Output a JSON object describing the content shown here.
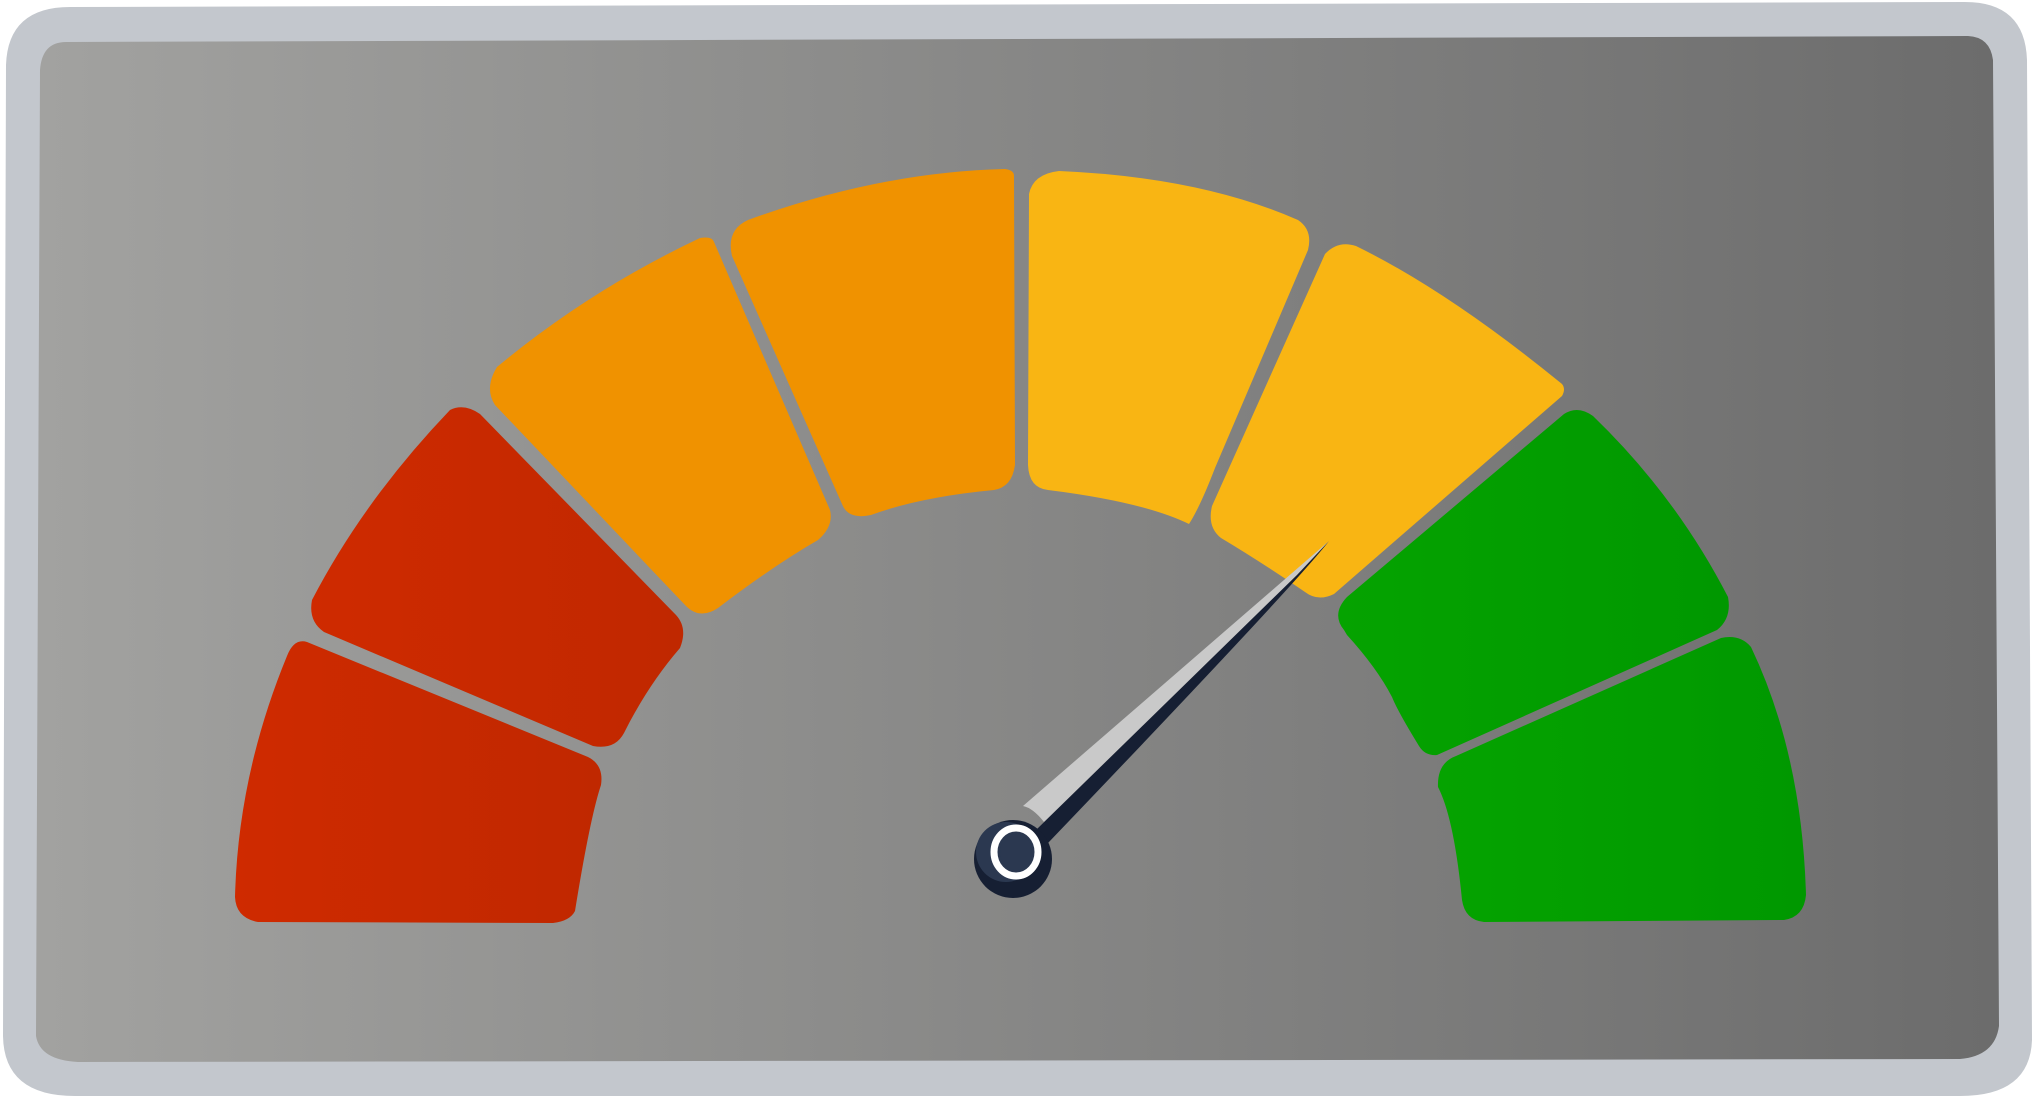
{
  "gauge": {
    "segment_count": 10,
    "needle_value": 7.2,
    "needle_range": [
      0,
      10
    ],
    "colors": {
      "frame": "#c3c7cd",
      "panel_light": "#a2a2a0",
      "panel_dark": "#6c6c6c",
      "red": "#cf2a00",
      "red_dark": "#c02800",
      "orange": "#f09200",
      "yellow": "#f9b513",
      "green": "#05a300",
      "green_dark": "#009800",
      "needle_light": "#c9c9c9",
      "needle_dark": "#161f33",
      "hub": "#2b3850",
      "hub_ring": "#ffffff"
    },
    "segments": [
      {
        "name": "segment-1",
        "color": "red"
      },
      {
        "name": "segment-2",
        "color": "red"
      },
      {
        "name": "segment-3",
        "color": "orange"
      },
      {
        "name": "segment-4",
        "color": "orange"
      },
      {
        "name": "segment-5",
        "color": "orange"
      },
      {
        "name": "segment-6",
        "color": "yellow"
      },
      {
        "name": "segment-7",
        "color": "yellow"
      },
      {
        "name": "segment-8",
        "color": "green"
      },
      {
        "name": "segment-9",
        "color": "green"
      },
      {
        "name": "segment-10",
        "color": "green"
      }
    ]
  }
}
